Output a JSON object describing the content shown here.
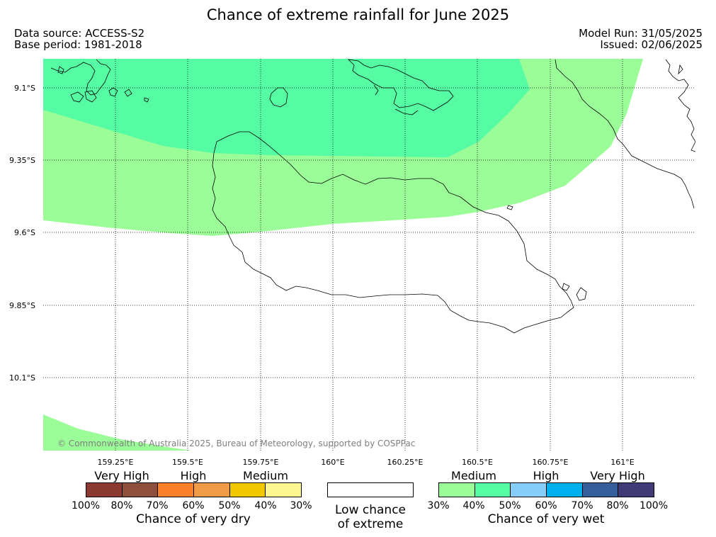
{
  "header": {
    "title": "Chance of extreme rainfall for June 2025",
    "data_source": "Data source: ACCESS-S2",
    "base_period": "Base period: 1981-2018",
    "model_run": "Model Run: 31/05/2025",
    "issued": "Issued: 02/06/2025"
  },
  "map": {
    "lat_labels": [
      "9.1°S",
      "9.35°S",
      "9.6°S",
      "9.85°S",
      "10.1°S"
    ],
    "lon_labels": [
      "159.25°E",
      "159.5°E",
      "159.75°E",
      "160°E",
      "160.25°E",
      "160.5°E",
      "160.75°E",
      "161°E"
    ],
    "copyright": "© Commonwealth of Australia 2025, Bureau of Meteorology, supported by COSPPac",
    "regions": [
      {
        "category": "wet 40-50%",
        "color": "#55fca4"
      },
      {
        "category": "wet 30-40%",
        "color": "#9bfd97"
      }
    ]
  },
  "legend": {
    "dry": {
      "categories": [
        "Very High",
        "High",
        "Medium"
      ],
      "colors": [
        "#8c3a31",
        "#8e4f3c",
        "#fc7f29",
        "#ef9b47",
        "#f0c700",
        "#fef68f"
      ],
      "ticks": [
        "100%",
        "80%",
        "70%",
        "60%",
        "50%",
        "40%",
        "30%"
      ],
      "caption": "Chance of very dry"
    },
    "low": {
      "line1": "Low chance",
      "line2": "of extreme"
    },
    "wet": {
      "categories": [
        "Medium",
        "High",
        "Very High"
      ],
      "colors": [
        "#9bfd97",
        "#55fca4",
        "#86cdf9",
        "#00b0ee",
        "#355f9c",
        "#403a77"
      ],
      "ticks": [
        "30%",
        "40%",
        "50%",
        "60%",
        "70%",
        "80%",
        "100%"
      ],
      "caption": "Chance of very wet"
    }
  }
}
